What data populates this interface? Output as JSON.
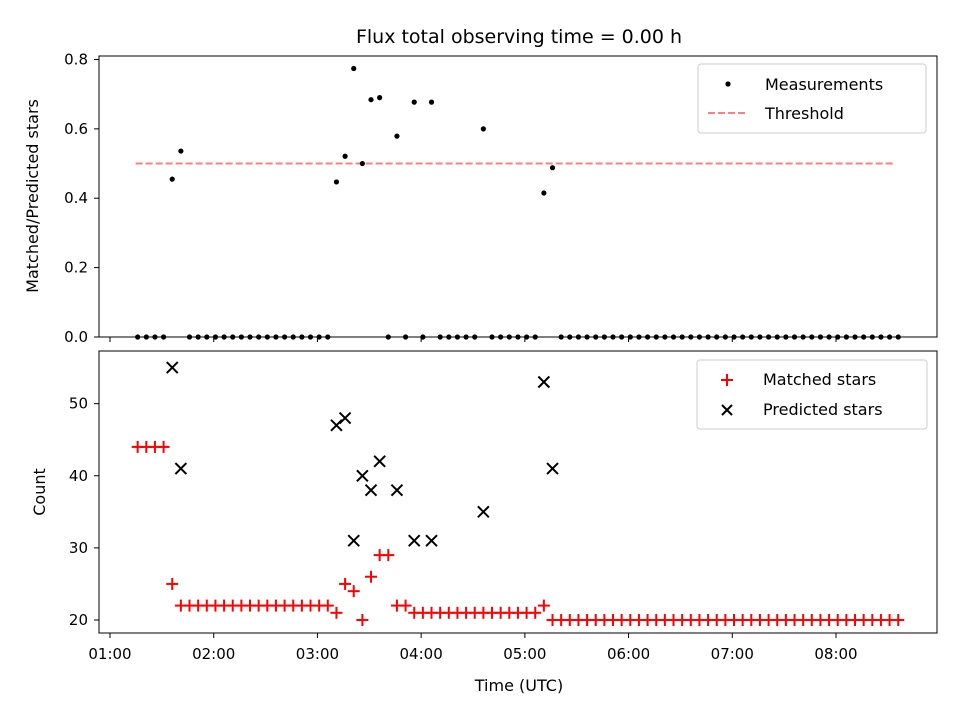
{
  "chart_data": [
    {
      "type": "scatter",
      "title": "Flux total observing time = 0.00 h",
      "ylabel": "Matched/Predicted stars",
      "xlabel": "",
      "ylim": [
        0,
        0.81
      ],
      "yticks": [
        0.0,
        0.2,
        0.4,
        0.6,
        0.8
      ],
      "yticklabels": [
        "0.0",
        "0.2",
        "0.4",
        "0.6",
        "0.8"
      ],
      "legend_position": "top-right",
      "series": [
        {
          "name": "Measurements",
          "color": "#000000",
          "marker": "dot",
          "points": [
            [
              "01:16",
              0
            ],
            [
              "01:21",
              0
            ],
            [
              "01:26",
              0
            ],
            [
              "01:31",
              0
            ],
            [
              "01:36",
              0.455
            ],
            [
              "01:41",
              0.536
            ],
            [
              "01:46",
              0
            ],
            [
              "01:51",
              0
            ],
            [
              "01:56",
              0
            ],
            [
              "02:01",
              0
            ],
            [
              "02:06",
              0
            ],
            [
              "02:11",
              0
            ],
            [
              "02:16",
              0
            ],
            [
              "02:21",
              0
            ],
            [
              "02:26",
              0
            ],
            [
              "02:31",
              0
            ],
            [
              "02:36",
              0
            ],
            [
              "02:41",
              0
            ],
            [
              "02:46",
              0
            ],
            [
              "02:51",
              0
            ],
            [
              "02:56",
              0
            ],
            [
              "03:01",
              0
            ],
            [
              "03:06",
              0
            ],
            [
              "03:11",
              0.447
            ],
            [
              "03:16",
              0.521
            ],
            [
              "03:21",
              0.774
            ],
            [
              "03:26",
              0.5
            ],
            [
              "03:31",
              0.684
            ],
            [
              "03:36",
              0.69
            ],
            [
              "03:41",
              0
            ],
            [
              "03:46",
              0.579
            ],
            [
              "03:51",
              0
            ],
            [
              "03:56",
              0.677
            ],
            [
              "04:01",
              0
            ],
            [
              "04:06",
              0.677
            ],
            [
              "04:11",
              0
            ],
            [
              "04:16",
              0
            ],
            [
              "04:21",
              0
            ],
            [
              "04:26",
              0
            ],
            [
              "04:31",
              0
            ],
            [
              "04:36",
              0.6
            ],
            [
              "04:41",
              0
            ],
            [
              "04:46",
              0
            ],
            [
              "04:51",
              0
            ],
            [
              "04:56",
              0
            ],
            [
              "05:01",
              0
            ],
            [
              "05:06",
              0
            ],
            [
              "05:11",
              0.415
            ],
            [
              "05:16",
              0.488
            ],
            [
              "05:21",
              0
            ],
            [
              "05:26",
              0
            ],
            [
              "05:31",
              0
            ],
            [
              "05:36",
              0
            ],
            [
              "05:41",
              0
            ],
            [
              "05:46",
              0
            ],
            [
              "05:51",
              0
            ],
            [
              "05:56",
              0
            ],
            [
              "06:01",
              0
            ],
            [
              "06:06",
              0
            ],
            [
              "06:11",
              0
            ],
            [
              "06:16",
              0
            ],
            [
              "06:21",
              0
            ],
            [
              "06:26",
              0
            ],
            [
              "06:31",
              0
            ],
            [
              "06:36",
              0
            ],
            [
              "06:41",
              0
            ],
            [
              "06:46",
              0
            ],
            [
              "06:51",
              0
            ],
            [
              "06:56",
              0
            ],
            [
              "07:01",
              0
            ],
            [
              "07:06",
              0
            ],
            [
              "07:11",
              0
            ],
            [
              "07:16",
              0
            ],
            [
              "07:21",
              0
            ],
            [
              "07:26",
              0
            ],
            [
              "07:31",
              0
            ],
            [
              "07:36",
              0
            ],
            [
              "07:41",
              0
            ],
            [
              "07:46",
              0
            ],
            [
              "07:51",
              0
            ],
            [
              "07:56",
              0
            ],
            [
              "08:01",
              0
            ],
            [
              "08:06",
              0
            ],
            [
              "08:11",
              0
            ],
            [
              "08:16",
              0
            ],
            [
              "08:21",
              0
            ],
            [
              "08:26",
              0
            ],
            [
              "08:31",
              0
            ],
            [
              "08:36",
              0
            ]
          ]
        },
        {
          "name": "Threshold",
          "color": "#ff7f7f",
          "type": "line",
          "dashed": true,
          "x": [
            "01:16",
            "08:36"
          ],
          "y": [
            0.5,
            0.5
          ]
        }
      ]
    },
    {
      "type": "scatter",
      "title": "",
      "xlabel": "Time (UTC)",
      "ylabel": "Count",
      "ylim": [
        18.2,
        57.3
      ],
      "yticks": [
        20,
        30,
        40,
        50
      ],
      "yticklabels": [
        "20",
        "30",
        "40",
        "50"
      ],
      "xticks": [
        "01:00",
        "02:00",
        "03:00",
        "04:00",
        "05:00",
        "06:00",
        "07:00",
        "08:00"
      ],
      "xticklabels": [
        "01:00",
        "02:00",
        "03:00",
        "04:00",
        "05:00",
        "06:00",
        "07:00",
        "08:00"
      ],
      "legend_position": "top-right",
      "series": [
        {
          "name": "Matched stars",
          "color": "#ff0000",
          "marker": "plus",
          "points": [
            [
              "01:16",
              44
            ],
            [
              "01:21",
              44
            ],
            [
              "01:26",
              44
            ],
            [
              "01:31",
              44
            ],
            [
              "01:36",
              25
            ],
            [
              "01:41",
              22
            ],
            [
              "01:46",
              22
            ],
            [
              "01:51",
              22
            ],
            [
              "01:56",
              22
            ],
            [
              "02:01",
              22
            ],
            [
              "02:06",
              22
            ],
            [
              "02:11",
              22
            ],
            [
              "02:16",
              22
            ],
            [
              "02:21",
              22
            ],
            [
              "02:26",
              22
            ],
            [
              "02:31",
              22
            ],
            [
              "02:36",
              22
            ],
            [
              "02:41",
              22
            ],
            [
              "02:46",
              22
            ],
            [
              "02:51",
              22
            ],
            [
              "02:56",
              22
            ],
            [
              "03:01",
              22
            ],
            [
              "03:06",
              22
            ],
            [
              "03:11",
              21
            ],
            [
              "03:16",
              25
            ],
            [
              "03:21",
              24
            ],
            [
              "03:26",
              20
            ],
            [
              "03:31",
              26
            ],
            [
              "03:36",
              29
            ],
            [
              "03:41",
              29
            ],
            [
              "03:46",
              22
            ],
            [
              "03:51",
              22
            ],
            [
              "03:56",
              21
            ],
            [
              "04:01",
              21
            ],
            [
              "04:06",
              21
            ],
            [
              "04:11",
              21
            ],
            [
              "04:16",
              21
            ],
            [
              "04:21",
              21
            ],
            [
              "04:26",
              21
            ],
            [
              "04:31",
              21
            ],
            [
              "04:36",
              21
            ],
            [
              "04:41",
              21
            ],
            [
              "04:46",
              21
            ],
            [
              "04:51",
              21
            ],
            [
              "04:56",
              21
            ],
            [
              "05:01",
              21
            ],
            [
              "05:06",
              21
            ],
            [
              "05:11",
              22
            ],
            [
              "05:16",
              20
            ],
            [
              "05:21",
              20
            ],
            [
              "05:26",
              20
            ],
            [
              "05:31",
              20
            ],
            [
              "05:36",
              20
            ],
            [
              "05:41",
              20
            ],
            [
              "05:46",
              20
            ],
            [
              "05:51",
              20
            ],
            [
              "05:56",
              20
            ],
            [
              "06:01",
              20
            ],
            [
              "06:06",
              20
            ],
            [
              "06:11",
              20
            ],
            [
              "06:16",
              20
            ],
            [
              "06:21",
              20
            ],
            [
              "06:26",
              20
            ],
            [
              "06:31",
              20
            ],
            [
              "06:36",
              20
            ],
            [
              "06:41",
              20
            ],
            [
              "06:46",
              20
            ],
            [
              "06:51",
              20
            ],
            [
              "06:56",
              20
            ],
            [
              "07:01",
              20
            ],
            [
              "07:06",
              20
            ],
            [
              "07:11",
              20
            ],
            [
              "07:16",
              20
            ],
            [
              "07:21",
              20
            ],
            [
              "07:26",
              20
            ],
            [
              "07:31",
              20
            ],
            [
              "07:36",
              20
            ],
            [
              "07:41",
              20
            ],
            [
              "07:46",
              20
            ],
            [
              "07:51",
              20
            ],
            [
              "07:56",
              20
            ],
            [
              "08:01",
              20
            ],
            [
              "08:06",
              20
            ],
            [
              "08:11",
              20
            ],
            [
              "08:16",
              20
            ],
            [
              "08:21",
              20
            ],
            [
              "08:26",
              20
            ],
            [
              "08:31",
              20
            ],
            [
              "08:36",
              20
            ]
          ]
        },
        {
          "name": "Predicted stars",
          "color": "#000000",
          "marker": "x",
          "points": [
            [
              "01:36",
              55
            ],
            [
              "01:41",
              41
            ],
            [
              "03:11",
              47
            ],
            [
              "03:16",
              48
            ],
            [
              "03:21",
              31
            ],
            [
              "03:26",
              40
            ],
            [
              "03:31",
              38
            ],
            [
              "03:36",
              42
            ],
            [
              "03:46",
              38
            ],
            [
              "03:56",
              31
            ],
            [
              "04:06",
              31
            ],
            [
              "04:36",
              35
            ],
            [
              "05:11",
              53
            ],
            [
              "05:16",
              41
            ]
          ]
        }
      ]
    }
  ]
}
